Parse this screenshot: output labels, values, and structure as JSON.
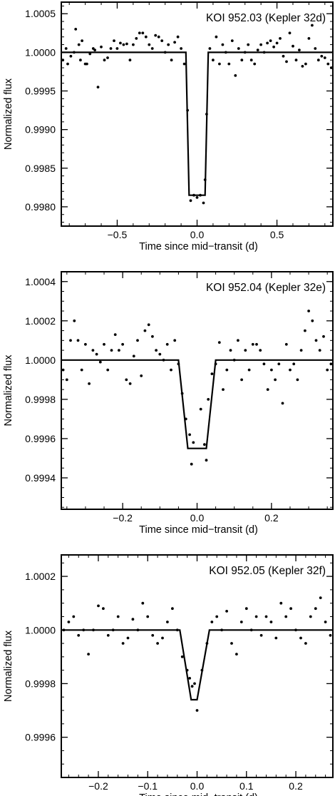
{
  "chart_data": [
    {
      "type": "scatter",
      "title": "KOI 952.03  (Kepler 32d)",
      "xlabel": "Time since mid−transit (d)",
      "ylabel": "Normalized flux",
      "xlim": [
        -0.85,
        0.85
      ],
      "ylim": [
        0.99775,
        1.00065
      ],
      "xticks": [
        -0.5,
        0.0,
        0.5
      ],
      "xtick_labels": [
        "−0.5",
        "0.0",
        "0.5"
      ],
      "yticks": [
        0.998,
        0.9985,
        0.999,
        0.9995,
        1.0,
        1.0005
      ],
      "ytick_labels": [
        "0.9980",
        "0.9985",
        "0.9990",
        "0.9995",
        "1.0000",
        "1.0005"
      ],
      "model": [
        [
          -0.85,
          1.0
        ],
        [
          -0.07,
          1.0
        ],
        [
          -0.05,
          0.99815
        ],
        [
          0.05,
          0.99815
        ],
        [
          0.07,
          1.0
        ],
        [
          0.85,
          1.0
        ]
      ],
      "points": [
        [
          -0.84,
          0.9999
        ],
        [
          -0.82,
          1.00005
        ],
        [
          -0.81,
          0.99985
        ],
        [
          -0.79,
          0.99995
        ],
        [
          -0.77,
          1.0
        ],
        [
          -0.76,
          1.0003
        ],
        [
          -0.74,
          1.0001
        ],
        [
          -0.73,
          0.9999
        ],
        [
          -0.72,
          1.00015
        ],
        [
          -0.7,
          0.99985
        ],
        [
          -0.69,
          0.99985
        ],
        [
          -0.67,
          0.99998
        ],
        [
          -0.65,
          1.00005
        ],
        [
          -0.64,
          1.00003
        ],
        [
          -0.62,
          0.99955
        ],
        [
          -0.6,
          1.00007
        ],
        [
          -0.58,
          0.9999
        ],
        [
          -0.56,
          0.99993
        ],
        [
          -0.54,
          1.00005
        ],
        [
          -0.52,
          1.00015
        ],
        [
          -0.5,
          1.00005
        ],
        [
          -0.48,
          1.00012
        ],
        [
          -0.46,
          1.0001
        ],
        [
          -0.44,
          1.00011
        ],
        [
          -0.42,
          0.9999
        ],
        [
          -0.4,
          1.0001
        ],
        [
          -0.38,
          1.00018
        ],
        [
          -0.36,
          1.00025
        ],
        [
          -0.34,
          1.00025
        ],
        [
          -0.32,
          1.0002
        ],
        [
          -0.3,
          1.0001
        ],
        [
          -0.28,
          1.00005
        ],
        [
          -0.26,
          1.00022
        ],
        [
          -0.24,
          1.0002
        ],
        [
          -0.22,
          1.00015
        ],
        [
          -0.2,
          1.0
        ],
        [
          -0.18,
          1.0001
        ],
        [
          -0.16,
          0.9999
        ],
        [
          -0.14,
          1.00013
        ],
        [
          -0.12,
          1.0002
        ],
        [
          -0.1,
          1.00005
        ],
        [
          -0.08,
          0.99985
        ],
        [
          -0.06,
          0.99925
        ],
        [
          -0.04,
          0.99808
        ],
        [
          -0.02,
          0.99815
        ],
        [
          0.0,
          0.99812
        ],
        [
          0.02,
          0.99815
        ],
        [
          0.04,
          0.99805
        ],
        [
          0.05,
          0.99835
        ],
        [
          0.06,
          0.9992
        ],
        [
          0.08,
          1.00005
        ],
        [
          0.1,
          0.9999
        ],
        [
          0.12,
          1.0002
        ],
        [
          0.14,
          0.99985
        ],
        [
          0.16,
          1.0001
        ],
        [
          0.18,
          1.0
        ],
        [
          0.2,
          0.99985
        ],
        [
          0.22,
          1.00015
        ],
        [
          0.24,
          0.9997
        ],
        [
          0.26,
          1.00005
        ],
        [
          0.28,
          0.9999
        ],
        [
          0.3,
          1.0
        ],
        [
          0.32,
          1.0001
        ],
        [
          0.34,
          0.9999
        ],
        [
          0.36,
          0.99985
        ],
        [
          0.38,
          1.00003
        ],
        [
          0.4,
          1.0001
        ],
        [
          0.42,
          1.0
        ],
        [
          0.44,
          1.00012
        ],
        [
          0.46,
          1.00015
        ],
        [
          0.48,
          1.00007
        ],
        [
          0.5,
          1.00012
        ],
        [
          0.52,
          1.00018
        ],
        [
          0.54,
          0.99995
        ],
        [
          0.56,
          0.99988
        ],
        [
          0.58,
          1.00025
        ],
        [
          0.6,
          1.00008
        ],
        [
          0.62,
          0.9999
        ],
        [
          0.64,
          1.00003
        ],
        [
          0.66,
          0.99982
        ],
        [
          0.68,
          0.99985
        ],
        [
          0.7,
          1.00018
        ],
        [
          0.72,
          1.00035
        ],
        [
          0.74,
          1.00005
        ],
        [
          0.76,
          0.9999
        ],
        [
          0.78,
          0.99995
        ],
        [
          0.8,
          0.99993
        ],
        [
          0.82,
          0.99985
        ],
        [
          0.84,
          0.9998
        ]
      ]
    },
    {
      "type": "scatter",
      "title": "KOI 952.04  (Kepler 32e)",
      "xlabel": "Time since mid−transit (d)",
      "ylabel": "Normalized flux",
      "xlim": [
        -0.365,
        0.365
      ],
      "ylim": [
        0.99924,
        1.00045
      ],
      "xticks": [
        -0.2,
        0.0,
        0.2
      ],
      "xtick_labels": [
        "−0.2",
        "0.0",
        "0.2"
      ],
      "yticks": [
        0.9994,
        0.9996,
        0.9998,
        1.0,
        1.0002,
        1.0004
      ],
      "ytick_labels": [
        "0.9994",
        "0.9996",
        "0.9998",
        "1.0000",
        "1.0002",
        "1.0004"
      ],
      "model": [
        [
          -0.365,
          1.0
        ],
        [
          -0.05,
          1.0
        ],
        [
          -0.025,
          0.99955
        ],
        [
          0.025,
          0.99955
        ],
        [
          0.05,
          1.0
        ],
        [
          0.365,
          1.0
        ]
      ],
      "points": [
        [
          -0.36,
          0.99995
        ],
        [
          -0.35,
          0.9999
        ],
        [
          -0.34,
          1.0001
        ],
        [
          -0.33,
          1.0002
        ],
        [
          -0.32,
          1.0001
        ],
        [
          -0.31,
          0.99995
        ],
        [
          -0.3,
          1.00008
        ],
        [
          -0.29,
          0.99988
        ],
        [
          -0.28,
          1.00005
        ],
        [
          -0.27,
          1.00003
        ],
        [
          -0.26,
          0.99999
        ],
        [
          -0.25,
          1.00008
        ],
        [
          -0.24,
          0.99995
        ],
        [
          -0.23,
          1.00005
        ],
        [
          -0.22,
          1.00013
        ],
        [
          -0.21,
          1.00005
        ],
        [
          -0.2,
          1.00008
        ],
        [
          -0.19,
          0.9999
        ],
        [
          -0.18,
          0.99988
        ],
        [
          -0.17,
          1.00002
        ],
        [
          -0.16,
          1.0001
        ],
        [
          -0.15,
          0.99992
        ],
        [
          -0.14,
          1.00015
        ],
        [
          -0.13,
          1.00018
        ],
        [
          -0.12,
          1.00012
        ],
        [
          -0.11,
          1.00005
        ],
        [
          -0.1,
          1.00003
        ],
        [
          -0.09,
          1.0
        ],
        [
          -0.08,
          1.00008
        ],
        [
          -0.07,
          0.99995
        ],
        [
          -0.06,
          1.0001
        ],
        [
          -0.05,
          0.99998
        ],
        [
          -0.04,
          0.99983
        ],
        [
          -0.03,
          0.9997
        ],
        [
          -0.02,
          0.99962
        ],
        [
          -0.015,
          0.99947
        ],
        [
          -0.01,
          0.99958
        ],
        [
          0.01,
          0.99975
        ],
        [
          0.02,
          0.99957
        ],
        [
          0.025,
          0.99949
        ],
        [
          0.03,
          0.9998
        ],
        [
          0.04,
          0.99993
        ],
        [
          0.05,
          0.99998
        ],
        [
          0.06,
          1.00009
        ],
        [
          0.07,
          0.99985
        ],
        [
          0.08,
          0.99995
        ],
        [
          0.09,
          1.00005
        ],
        [
          0.1,
          1.0
        ],
        [
          0.11,
          1.0001
        ],
        [
          0.12,
          0.9999
        ],
        [
          0.13,
          1.00005
        ],
        [
          0.14,
          0.99995
        ],
        [
          0.15,
          1.00008
        ],
        [
          0.16,
          1.00008
        ],
        [
          0.17,
          1.00005
        ],
        [
          0.18,
          0.99998
        ],
        [
          0.19,
          0.99985
        ],
        [
          0.2,
          0.99995
        ],
        [
          0.21,
          0.9999
        ],
        [
          0.22,
          0.99998
        ],
        [
          0.23,
          0.99978
        ],
        [
          0.24,
          1.00008
        ],
        [
          0.25,
          0.99995
        ],
        [
          0.26,
          0.99998
        ],
        [
          0.27,
          0.9999
        ],
        [
          0.28,
          1.00005
        ],
        [
          0.29,
          1.00015
        ],
        [
          0.3,
          1.00025
        ],
        [
          0.31,
          1.0002
        ],
        [
          0.32,
          1.0001
        ],
        [
          0.33,
          1.00005
        ],
        [
          0.34,
          1.00012
        ],
        [
          0.35,
          0.99995
        ],
        [
          0.36,
          0.99998
        ]
      ]
    },
    {
      "type": "scatter",
      "title": "KOI 952.05  (Kepler 32f)",
      "xlabel": "Time since mid−transit (d)",
      "ylabel": "Normalized flux",
      "xlim": [
        -0.275,
        0.275
      ],
      "ylim": [
        0.99945,
        1.00028
      ],
      "xticks": [
        -0.2,
        -0.1,
        0.0,
        0.1,
        0.2
      ],
      "xtick_labels": [
        "−0.2",
        "−0.1",
        "0.0",
        "0.1",
        "0.2"
      ],
      "yticks": [
        0.9996,
        0.9998,
        1.0,
        1.0002
      ],
      "ytick_labels": [
        "0.9996",
        "0.9998",
        "1.0000",
        "1.0002"
      ],
      "model": [
        [
          -0.275,
          1.0
        ],
        [
          -0.035,
          1.0
        ],
        [
          -0.012,
          0.99974
        ],
        [
          0.0,
          0.99974
        ],
        [
          0.025,
          1.0
        ],
        [
          0.275,
          1.0
        ]
      ],
      "points": [
        [
          -0.27,
          1.0
        ],
        [
          -0.26,
          1.00003
        ],
        [
          -0.25,
          1.00005
        ],
        [
          -0.24,
          0.99998
        ],
        [
          -0.23,
          1.0
        ],
        [
          -0.22,
          0.99991
        ],
        [
          -0.21,
          1.0
        ],
        [
          -0.2,
          1.00009
        ],
        [
          -0.19,
          1.00008
        ],
        [
          -0.18,
          0.99998
        ],
        [
          -0.17,
          1.0
        ],
        [
          -0.16,
          1.00005
        ],
        [
          -0.15,
          0.99995
        ],
        [
          -0.14,
          0.99997
        ],
        [
          -0.13,
          1.00004
        ],
        [
          -0.12,
          1.0
        ],
        [
          -0.11,
          1.0001
        ],
        [
          -0.1,
          1.00005
        ],
        [
          -0.09,
          0.99998
        ],
        [
          -0.08,
          0.99995
        ],
        [
          -0.07,
          0.99997
        ],
        [
          -0.06,
          1.00003
        ],
        [
          -0.05,
          1.00008
        ],
        [
          -0.04,
          1.0
        ],
        [
          -0.03,
          0.9999
        ],
        [
          -0.02,
          0.99985
        ],
        [
          -0.015,
          0.99982
        ],
        [
          -0.01,
          0.99979
        ],
        [
          -0.005,
          0.9998
        ],
        [
          0.0,
          0.9997
        ],
        [
          0.01,
          0.99985
        ],
        [
          0.02,
          0.99995
        ],
        [
          0.03,
          1.00003
        ],
        [
          0.04,
          1.00005
        ],
        [
          0.05,
          1.0
        ],
        [
          0.06,
          1.00007
        ],
        [
          0.07,
          0.99995
        ],
        [
          0.08,
          0.99991
        ],
        [
          0.09,
          1.00003
        ],
        [
          0.1,
          1.00008
        ],
        [
          0.11,
          1.0
        ],
        [
          0.12,
          1.00005
        ],
        [
          0.13,
          0.99998
        ],
        [
          0.14,
          1.00005
        ],
        [
          0.15,
          1.00003
        ],
        [
          0.16,
          0.99997
        ],
        [
          0.17,
          1.0001
        ],
        [
          0.18,
          1.00005
        ],
        [
          0.19,
          1.00008
        ],
        [
          0.2,
          1.0
        ],
        [
          0.21,
          0.99997
        ],
        [
          0.22,
          0.99995
        ],
        [
          0.23,
          1.00005
        ],
        [
          0.24,
          1.00008
        ],
        [
          0.25,
          1.00012
        ],
        [
          0.26,
          1.00003
        ],
        [
          0.27,
          0.99998
        ]
      ]
    }
  ]
}
